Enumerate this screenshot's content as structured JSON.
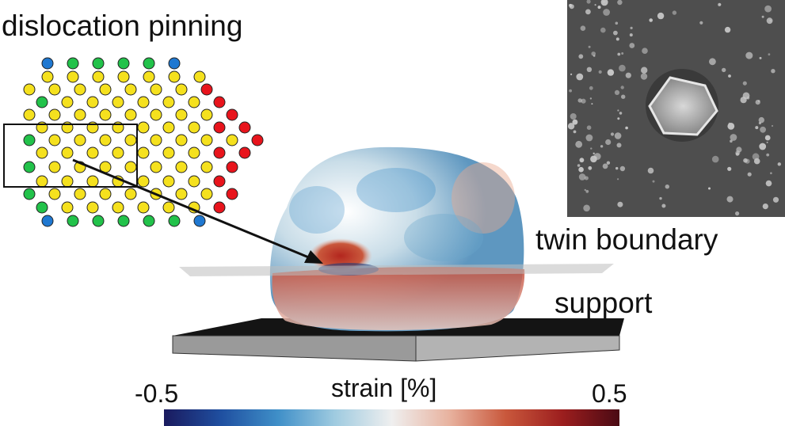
{
  "labels": {
    "title": "dislocation pinning",
    "twin_boundary": "twin boundary",
    "support": "support"
  },
  "colorbar": {
    "label": "strain [%]",
    "min": "-0.5",
    "max": "0.5",
    "stops": [
      "#1a1a5e",
      "#1f4fa0",
      "#3f8fc8",
      "#9fcbe0",
      "#efefef",
      "#e8b3a0",
      "#c9583c",
      "#9c1e1e",
      "#4a0a14"
    ]
  },
  "lattice_colors": {
    "yellow": "#f5e11e",
    "green": "#22c24a",
    "red": "#e8141c",
    "blue": "#1f78d1"
  }
}
